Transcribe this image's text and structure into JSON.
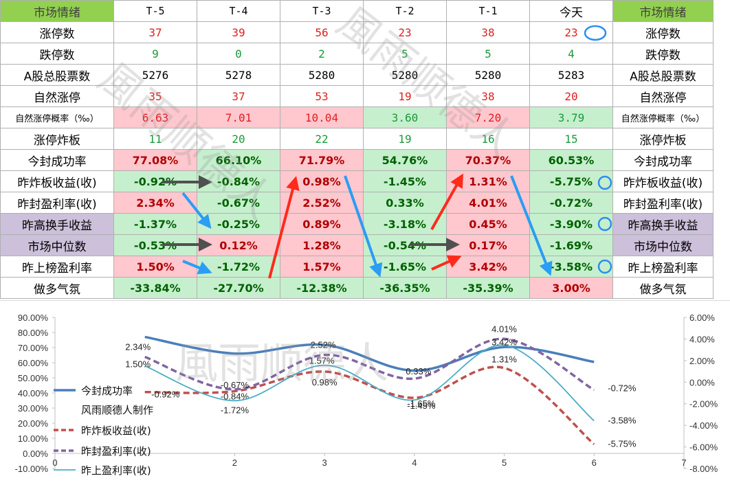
{
  "columns": [
    "市场情绪",
    "T-5",
    "T-4",
    "T-3",
    "T-2",
    "T-1",
    "今天",
    "市场情绪"
  ],
  "rows": [
    {
      "label": "涨停数",
      "values": [
        "37",
        "39",
        "56",
        "23",
        "38",
        "23"
      ],
      "style": "red-text"
    },
    {
      "label": "跌停数",
      "values": [
        "9",
        "0",
        "2",
        "5",
        "5",
        "4"
      ],
      "style": "green-text"
    },
    {
      "label": "A股总股票数",
      "values": [
        "5276",
        "5278",
        "5280",
        "5280",
        "5280",
        "5283"
      ],
      "style": "plain"
    },
    {
      "label": "自然涨停",
      "values": [
        "35",
        "37",
        "53",
        "19",
        "38",
        "20"
      ],
      "style": "red-text"
    },
    {
      "label": "自然涨停概率（‰）",
      "values": [
        "6.63",
        "7.01",
        "10.04",
        "3.60",
        "7.20",
        "3.79"
      ],
      "style": "red-fill",
      "fills": [
        "p",
        "p",
        "p",
        "lg",
        "p",
        "lg"
      ]
    },
    {
      "label": "涨停炸板",
      "values": [
        "11",
        "20",
        "22",
        "19",
        "16",
        "15"
      ],
      "style": "green-text"
    },
    {
      "label": "今封成功率",
      "values": [
        "77.08%",
        "66.10%",
        "71.79%",
        "54.76%",
        "70.37%",
        "60.53%"
      ],
      "style": "bold",
      "fills": [
        "p",
        "lg",
        "p",
        "lg",
        "p",
        "lg"
      ]
    },
    {
      "label": "昨炸板收益(收)",
      "values": [
        "-0.92%",
        "-0.84%",
        "0.98%",
        "-1.45%",
        "1.31%",
        "-5.75%"
      ],
      "style": "bold",
      "fills": [
        "lg",
        "lg",
        "p",
        "lg",
        "p",
        "lg"
      ]
    },
    {
      "label": "昨封盈利率(收)",
      "values": [
        "2.34%",
        "-0.67%",
        "2.52%",
        "0.33%",
        "4.01%",
        "-0.72%"
      ],
      "style": "bold",
      "fills": [
        "p",
        "lg",
        "p",
        "lg",
        "p",
        "lg"
      ]
    },
    {
      "label": "昨高换手收益",
      "values": [
        "-1.37%",
        "-0.25%",
        "0.89%",
        "-3.18%",
        "0.45%",
        "-3.90%"
      ],
      "style": "bold",
      "fills": [
        "lg",
        "lg",
        "p",
        "lg",
        "p",
        "lg"
      ],
      "labelFill": "v"
    },
    {
      "label": "市场中位数",
      "values": [
        "-0.53%",
        "0.12%",
        "1.28%",
        "-0.54%",
        "0.17%",
        "-1.69%"
      ],
      "style": "bold",
      "fills": [
        "lg",
        "p",
        "p",
        "lg",
        "p",
        "lg"
      ],
      "labelFill": "v"
    },
    {
      "label": "昨上榜盈利率",
      "values": [
        "1.50%",
        "-1.72%",
        "1.57%",
        "-1.65%",
        "3.42%",
        "-3.58%"
      ],
      "style": "bold",
      "fills": [
        "p",
        "lg",
        "p",
        "lg",
        "p",
        "lg"
      ]
    },
    {
      "label": "做多气氛",
      "values": [
        "-33.84%",
        "-27.70%",
        "-12.38%",
        "-36.35%",
        "-35.39%",
        "3.00%"
      ],
      "style": "bold",
      "fills": [
        "lg",
        "lg",
        "lg",
        "lg",
        "lg",
        "p"
      ]
    }
  ],
  "watermark": "風雨顺德人",
  "colors": {
    "header_green": "#92d050",
    "pink": "#ffc7ce",
    "light_green": "#c6efce",
    "violet": "#ccc0da",
    "red_text": "#e02020",
    "green_text": "#1a9a3a",
    "series_success": "#4a7ebb",
    "series_break": "#c0504d",
    "series_seal": "#8064a2",
    "series_list": "#4bacc6",
    "arrow_red": "#ff2a1a",
    "arrow_blue": "#2a9df4",
    "arrow_gray": "#505050",
    "circle": "#2a8ef0"
  },
  "chart_data": {
    "type": "line",
    "x": [
      1,
      2,
      3,
      4,
      5,
      6
    ],
    "x_ticks": [
      "0",
      "2",
      "3",
      "4",
      "5",
      "6",
      "7"
    ],
    "y_left_ticks": [
      "90.00%",
      "80.00%",
      "70.00%",
      "60.00%",
      "50.00%",
      "40.00%",
      "30.00%",
      "20.00%",
      "10.00%",
      "0.00%",
      "-10.00%"
    ],
    "y_right_ticks": [
      "6.00%",
      "4.00%",
      "2.00%",
      "0.00%",
      "-2.00%",
      "-4.00%",
      "-6.00%",
      "-8.00%"
    ],
    "ylim_left": [
      -10,
      90
    ],
    "ylim_right": [
      -8,
      6
    ],
    "series": [
      {
        "name": "今封成功率",
        "axis": "left",
        "values": [
          77.08,
          66.1,
          71.79,
          54.76,
          70.37,
          60.53
        ],
        "labels": []
      },
      {
        "name": "昨炸板收益(收)",
        "axis": "right",
        "values": [
          -0.92,
          -0.84,
          0.98,
          -1.45,
          1.31,
          -5.75
        ],
        "labels": [
          "-0.92%",
          "-0.84%",
          "0.98%",
          "-1.45%",
          "1.31%",
          "-5.75%"
        ]
      },
      {
        "name": "昨封盈利率(收)",
        "axis": "right",
        "values": [
          2.34,
          -0.67,
          2.52,
          0.33,
          4.01,
          -0.72
        ],
        "labels": [
          "2.34%",
          "-0.67%",
          "2.52%",
          "0.33%",
          "4.01%",
          "-0.72%"
        ]
      },
      {
        "name": "昨上盈利率(收)",
        "axis": "right",
        "values": [
          1.5,
          -1.72,
          1.57,
          -1.65,
          3.42,
          -3.58
        ],
        "labels": [
          "1.50%",
          "-1.72%",
          "1.57%",
          "-1.65%",
          "3.42%",
          "-3.58%"
        ]
      }
    ],
    "legend_note": "风雨顺德人制作",
    "legend_position": "left",
    "grid": false
  }
}
